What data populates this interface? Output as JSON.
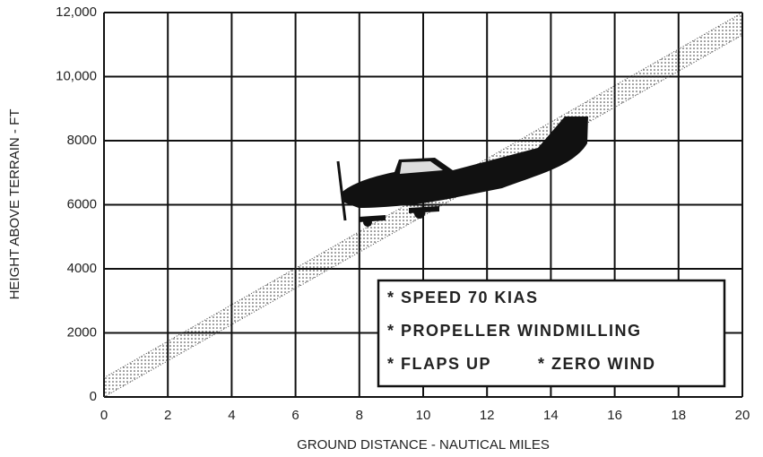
{
  "chart_data": {
    "type": "band",
    "xlabel": "GROUND DISTANCE - NAUTICAL MILES",
    "ylabel": "HEIGHT ABOVE TERRAIN - FT",
    "xlim": [
      0,
      20
    ],
    "xticks": [
      0,
      2,
      4,
      6,
      8,
      10,
      12,
      14,
      16,
      18,
      20
    ],
    "ylim": [
      0,
      12000
    ],
    "yticks": [
      0,
      2000,
      4000,
      6000,
      8000,
      {
        "value": 10000,
        "label": "10,000"
      },
      {
        "value": 12000,
        "label": "12,000"
      }
    ],
    "grid": true,
    "band": {
      "x": [
        0,
        20
      ],
      "lower": [
        0,
        11300
      ],
      "upper": [
        600,
        12000
      ],
      "color": "#444"
    },
    "notes": [
      "* SPEED 70 KIAS",
      "* PROPELLER WINDMILLING",
      "* FLAPS UP",
      "* ZERO WIND"
    ]
  }
}
